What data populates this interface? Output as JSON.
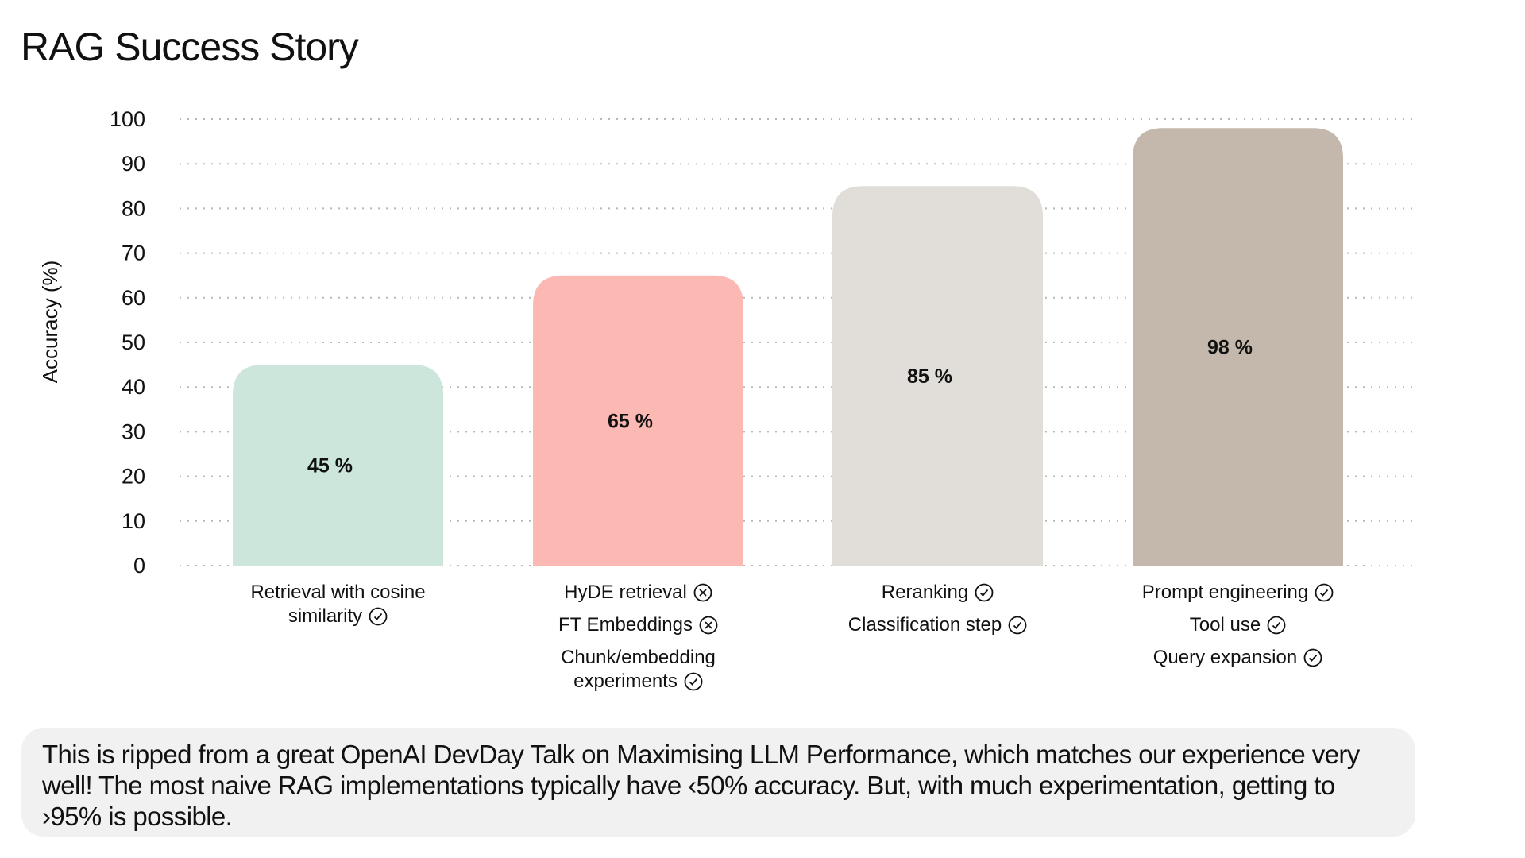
{
  "title": "RAG Success Story",
  "chart_data": {
    "type": "bar",
    "ylabel": "Accuracy (%)",
    "ylim": [
      0,
      100
    ],
    "yticks": [
      0,
      10,
      20,
      30,
      40,
      50,
      60,
      70,
      80,
      90,
      100
    ],
    "grid": true,
    "values": [
      45,
      65,
      85,
      98
    ],
    "value_labels": [
      "45 %",
      "65 %",
      "85 %",
      "98 %"
    ],
    "colors": [
      "#cce6dc",
      "#fcb9b3",
      "#e1ddd9",
      "#c4b8ac"
    ],
    "categories": [
      {
        "lines": [
          {
            "text": "Retrieval with cosine",
            "icon": null
          },
          {
            "text": "similarity",
            "icon": "check"
          }
        ]
      },
      {
        "lines": [
          {
            "text": "HyDE retrieval",
            "icon": "cross"
          },
          {
            "text": "FT Embeddings",
            "icon": "cross"
          },
          {
            "text": "Chunk/embedding",
            "icon": null
          },
          {
            "text": "experiments",
            "icon": "check"
          }
        ]
      },
      {
        "lines": [
          {
            "text": "Reranking",
            "icon": "check"
          },
          {
            "text": "Classification step",
            "icon": "check"
          }
        ]
      },
      {
        "lines": [
          {
            "text": "Prompt engineering",
            "icon": "check"
          },
          {
            "text": "Tool use",
            "icon": "check"
          },
          {
            "text": "Query expansion",
            "icon": "check"
          }
        ]
      }
    ]
  },
  "note": "This is ripped from a great OpenAI DevDay Talk on Maximising LLM Performance, which matches our experience very well! The most naive RAG implementations typically have ‹50% accuracy. But, with much experimentation, getting to ›95% is possible."
}
